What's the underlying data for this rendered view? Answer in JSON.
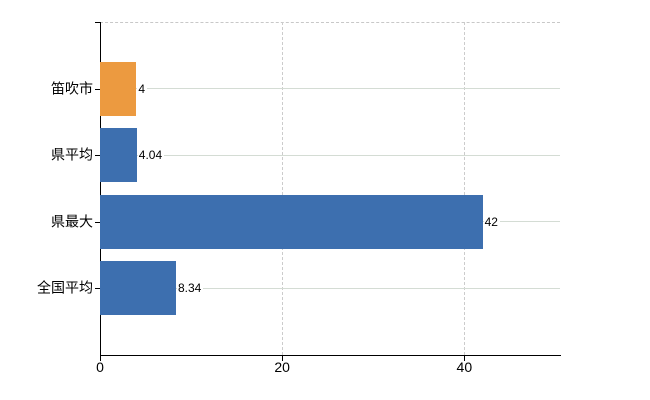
{
  "chart_data": {
    "type": "bar",
    "orientation": "horizontal",
    "title": "",
    "categories": [
      "笛吹市",
      "県平均",
      "県最大",
      "全国平均"
    ],
    "values": [
      4,
      4.04,
      42,
      8.34
    ],
    "value_labels": [
      "4",
      "4.04",
      "42",
      "8.34"
    ],
    "bar_color_roles": [
      "highlight",
      "default",
      "default",
      "default"
    ],
    "series_colors": {
      "highlight": "#EC9A40",
      "default": "#3D6FAF"
    },
    "xlim": [
      0,
      50.5
    ],
    "x_ticks": [
      0,
      20,
      40
    ],
    "x_tick_labels": [
      "0",
      "20",
      "40"
    ],
    "grid": true,
    "legend": false
  },
  "colors": {
    "background": "#ffffff",
    "axis": "#000000",
    "grid_horizontal": "#d4dcd4",
    "grid_vertical": "#cccccc",
    "top_border": "#c8c8c8",
    "text": "#000000"
  }
}
